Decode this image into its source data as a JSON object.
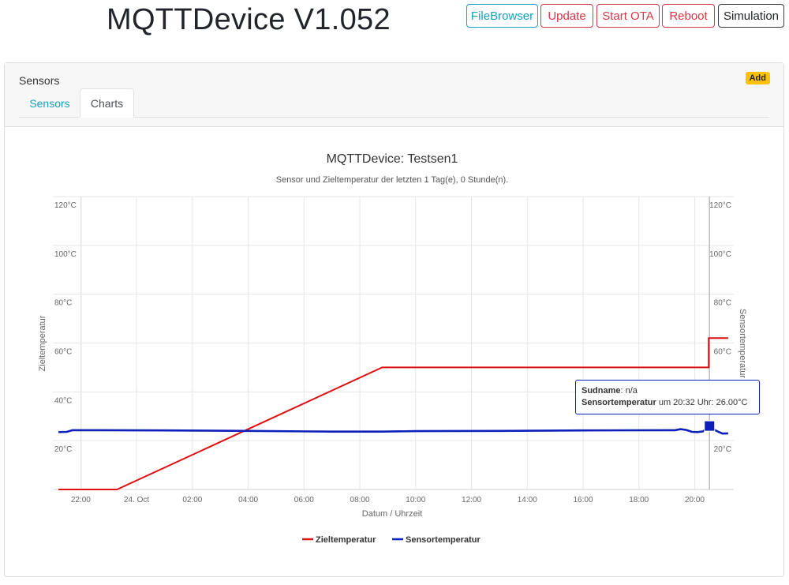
{
  "app": {
    "title": "MQTTDevice V1.052"
  },
  "nav_buttons": [
    {
      "label": "FileBrowser",
      "style": "info"
    },
    {
      "label": "Update",
      "style": "danger"
    },
    {
      "label": "Start OTA",
      "style": "danger"
    },
    {
      "label": "Reboot",
      "style": "danger"
    },
    {
      "label": "Simulation",
      "style": "dark"
    }
  ],
  "card": {
    "title": "Sensors",
    "add_label": "Add",
    "tabs": [
      {
        "label": "Sensors",
        "active": false
      },
      {
        "label": "Charts",
        "active": true
      }
    ]
  },
  "tooltip": {
    "line1_key": "Sudname",
    "line1_value": ": n/a",
    "line2_key": "Sensortemperatur",
    "line2_value": " um 20:32 Uhr: 26.00°C"
  },
  "chart_data": {
    "type": "line",
    "title": "MQTTDevice: Testsen1",
    "subtitle": "Sensor und Zieltemperatur der letzten 1 Tag(e), 0 Stunde(n).",
    "xlabel": "Datum / Uhrzeit",
    "ylabel_left": "Zieltemperatur",
    "ylabel_right": "Sensortemperatur",
    "x_unit": "hours since 22:00 on 23 Oct",
    "xlim": [
      -1,
      23.4
    ],
    "ylim": [
      0,
      120
    ],
    "x_ticks": [
      {
        "x": 0,
        "label": "22:00"
      },
      {
        "x": 2,
        "label": "24. Oct"
      },
      {
        "x": 4,
        "label": "02:00"
      },
      {
        "x": 6,
        "label": "04:00"
      },
      {
        "x": 8,
        "label": "06:00"
      },
      {
        "x": 10,
        "label": "08:00"
      },
      {
        "x": 12,
        "label": "10:00"
      },
      {
        "x": 14,
        "label": "12:00"
      },
      {
        "x": 16,
        "label": "14:00"
      },
      {
        "x": 18,
        "label": "16:00"
      },
      {
        "x": 20,
        "label": "18:00"
      },
      {
        "x": 22,
        "label": "20:00"
      }
    ],
    "y_ticks_left": [
      {
        "y": 20,
        "label": "20°C"
      },
      {
        "y": 40,
        "label": "40°C"
      },
      {
        "y": 60,
        "label": "60°C"
      },
      {
        "y": 80,
        "label": "80°C"
      },
      {
        "y": 100,
        "label": "100°C"
      },
      {
        "y": 120,
        "label": "120°C"
      }
    ],
    "y_ticks_right": [
      {
        "y": 20,
        "label": "20°C"
      },
      {
        "y": 60,
        "label": "60°C"
      },
      {
        "y": 80,
        "label": "80°C"
      },
      {
        "y": 100,
        "label": "100°C"
      },
      {
        "y": 120,
        "label": "120°C"
      }
    ],
    "crosshair_x": 22.53,
    "highlight_point": {
      "x": 22.53,
      "y": 26
    },
    "series": [
      {
        "name": "Zieltemperatur",
        "color": "#dd1111",
        "points": [
          [
            -0.8,
            0
          ],
          [
            1.3,
            0
          ],
          [
            10.8,
            50
          ],
          [
            22.5,
            50
          ],
          [
            22.5,
            62
          ],
          [
            23.2,
            62
          ]
        ]
      },
      {
        "name": "Sensortemperatur",
        "color": "#0c1fb8",
        "points": [
          [
            -0.8,
            23.5
          ],
          [
            -0.5,
            23.6
          ],
          [
            -0.3,
            24.3
          ],
          [
            0,
            24.3
          ],
          [
            3,
            24.2
          ],
          [
            6,
            24
          ],
          [
            9,
            23.7
          ],
          [
            10.8,
            23.7
          ],
          [
            12,
            23.9
          ],
          [
            15,
            24
          ],
          [
            18,
            24.2
          ],
          [
            21,
            24.3
          ],
          [
            21.3,
            24.3
          ],
          [
            21.5,
            24.7
          ],
          [
            21.7,
            24.4
          ],
          [
            21.9,
            23.6
          ],
          [
            22.1,
            23.5
          ],
          [
            22.3,
            23.8
          ],
          [
            22.53,
            26
          ],
          [
            22.7,
            24.5
          ],
          [
            22.85,
            23.6
          ],
          [
            23.0,
            22.9
          ],
          [
            23.2,
            23.0
          ]
        ]
      }
    ],
    "legend_position": "bottom-center",
    "grid": true
  }
}
